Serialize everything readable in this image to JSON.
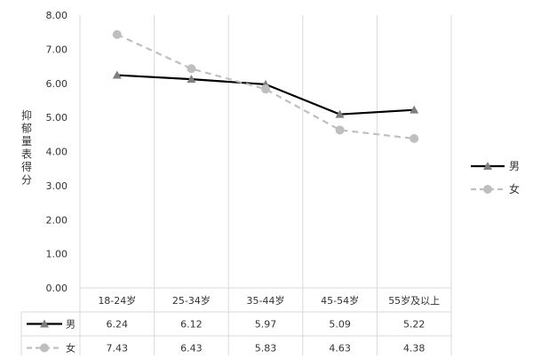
{
  "chart_data": {
    "type": "line",
    "title": "",
    "xlabel": "",
    "ylabel": "抑郁量表得分",
    "ylim": [
      0,
      8
    ],
    "yticks": [
      "0.00",
      "1.00",
      "2.00",
      "3.00",
      "4.00",
      "5.00",
      "6.00",
      "7.00",
      "8.00"
    ],
    "grid": "vertical",
    "legend": "right",
    "categories": [
      "18-24岁",
      "25-34岁",
      "35-44岁",
      "45-54岁",
      "55岁及以上"
    ],
    "series": [
      {
        "name": "男",
        "values": [
          6.24,
          6.12,
          5.97,
          5.09,
          5.22
        ],
        "labels": [
          "6.24",
          "6.12",
          "5.97",
          "5.09",
          "5.22"
        ],
        "color": "#000000",
        "marker": "triangle",
        "line_style": "solid"
      },
      {
        "name": "女",
        "values": [
          7.43,
          6.43,
          5.83,
          4.63,
          4.38
        ],
        "labels": [
          "7.43",
          "6.43",
          "5.83",
          "4.63",
          "4.38"
        ],
        "color": "#bfbfbf",
        "marker": "circle",
        "line_style": "dashed"
      }
    ],
    "data_table": true
  }
}
